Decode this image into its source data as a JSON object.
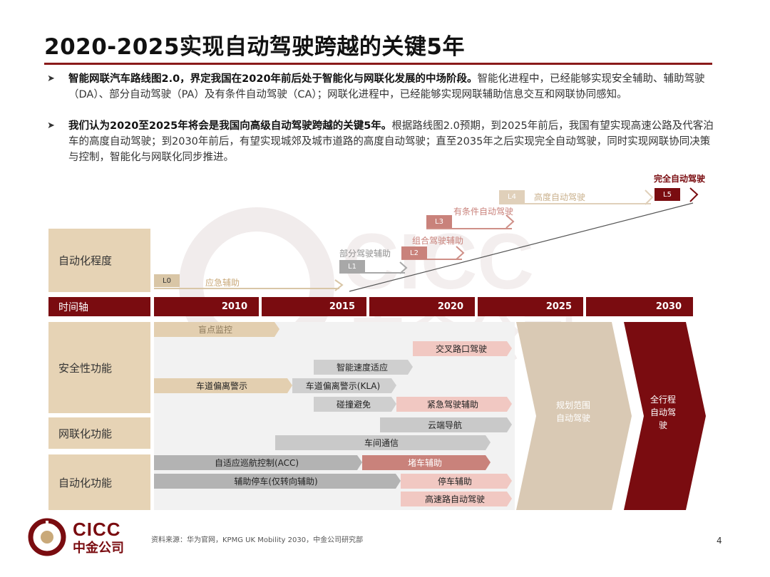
{
  "title": "2020-2025实现自动驾驶跨越的关键5年",
  "bullets": [
    {
      "bold": "智能网联汽车路线图2.0，界定我国在2020年前后处于智能化与网联化发展的中场阶段。",
      "rest": "智能化进程中，已经能够实现安全辅助、辅助驾驶（DA）、部分自动驾驶（PA）及有条件自动驾驶（CA）；网联化进程中，已经能够实现网联辅助信息交互和网联协同感知。"
    },
    {
      "bold": "我们认为2020至2025年将会是我国向高级自动驾驶跨越的关键5年。",
      "rest": "根据路线图2.0预期，到2025年前后，我国有望实现高速公路及代客泊车的高度自动驾驶；到2030年前后，有望实现城郊及城市道路的高度自动驾驶；直至2035年之后实现完全自动驾驶，同时实现网联协同决策与控制，智能化与网联化同步推进。"
    }
  ],
  "rows": {
    "automation_level": "自动化程度",
    "timeline": "时间轴",
    "safety": "安全性功能",
    "network": "网联化功能",
    "automation_func": "自动化功能"
  },
  "years": [
    "2010",
    "2015",
    "2020",
    "2025",
    "2030"
  ],
  "levels": [
    {
      "code": "L0",
      "name": "应急辅助"
    },
    {
      "code": "L1",
      "name": "部分驾驶辅助"
    },
    {
      "code": "L2",
      "name": "组合驾驶辅助"
    },
    {
      "code": "L3",
      "name": "有条件自动驾驶"
    },
    {
      "code": "L4",
      "name": "高度自动驾驶"
    },
    {
      "code": "L5",
      "name": "完全自动驾驶"
    }
  ],
  "features": {
    "blind_spot": "盲点监控",
    "cross_traffic": "交叉路口驾驶",
    "speed_adapt": "智能速度适应",
    "lane_warn": "车道偏离警示",
    "kla": "车道偏离警示(KLA)",
    "collision": "碰撞避免",
    "emergency": "紧急驾驶辅助",
    "cloud_nav": "云端导航",
    "v2v": "车间通信",
    "acc": "自适应巡航控制(ACC)",
    "traffic_jam": "堵车辅助",
    "park_assist": "辅助停车(仅转向辅助)",
    "parking": "停车辅助",
    "highway": "高速路自动驾驶",
    "planned_area": "规划范围\n自动驾驶",
    "full_trip": "全行程\n自动驾\n驶"
  },
  "source": "资料来源：华为官网，KPMG UK Mobility 2030，中金公司研究部",
  "page_number": "4",
  "logo": {
    "en": "CICC",
    "cn": "中金公司"
  },
  "colors": {
    "maroon": "#7a0c10",
    "tan": "#e6d3b5",
    "accent": "#8a1a1a"
  }
}
